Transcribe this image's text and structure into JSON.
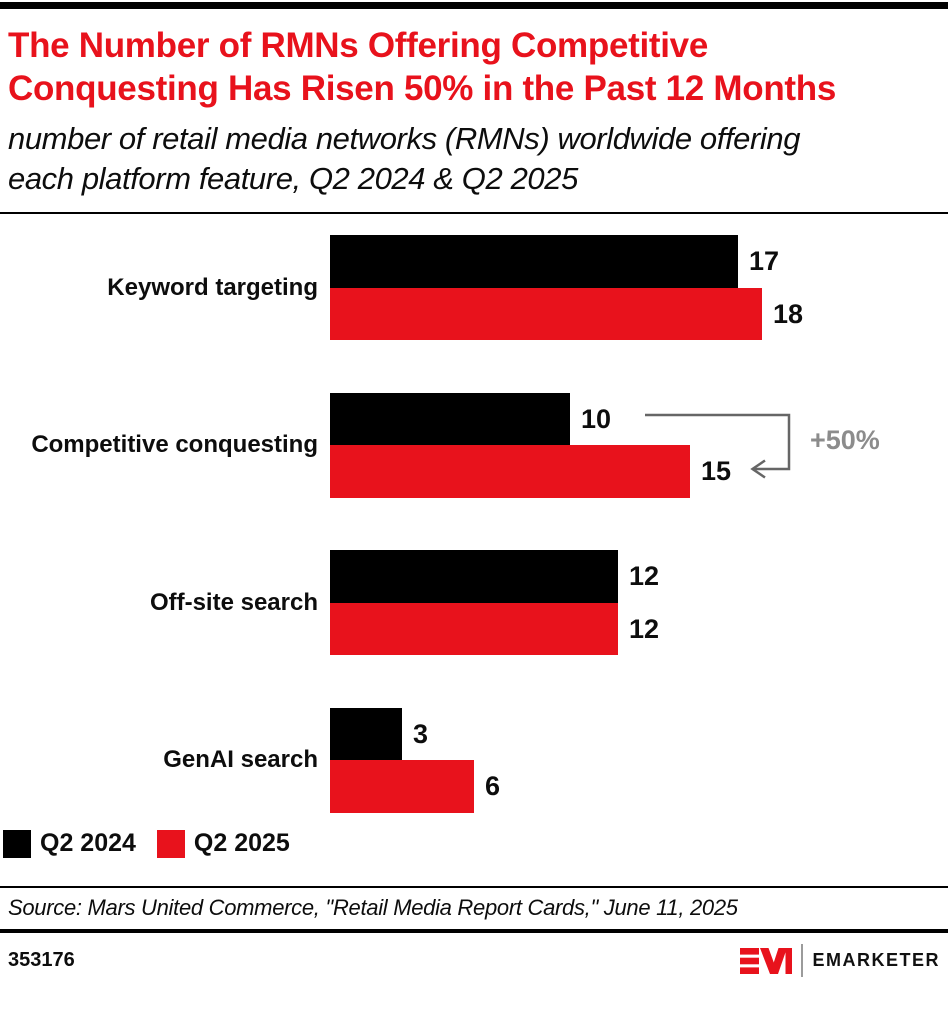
{
  "header": {
    "title": "The Number of RMNs Offering Competitive Conquesting Has Risen 50% in the Past 12 Months",
    "subtitle": "number of retail media networks (RMNs) worldwide offering each platform feature, Q2 2024 & Q2 2025"
  },
  "chart_data": {
    "type": "bar",
    "orientation": "horizontal",
    "title": "The Number of RMNs Offering Competitive Conquesting Has Risen 50% in the Past 12 Months",
    "subtitle": "number of retail media networks (RMNs) worldwide offering each platform feature, Q2 2024 & Q2 2025",
    "categories": [
      "Keyword targeting",
      "Competitive conquesting",
      "Off-site search",
      "GenAI search"
    ],
    "series": [
      {
        "name": "Q2 2024",
        "color": "#000000",
        "values": [
          17,
          10,
          12,
          3
        ]
      },
      {
        "name": "Q2 2025",
        "color": "#e8121c",
        "values": [
          18,
          15,
          12,
          6
        ]
      }
    ],
    "xlim": [
      0,
      18
    ],
    "grid": false,
    "value_labels_shown": true,
    "legend_position": "bottom-left",
    "annotation": {
      "label": "+50%",
      "category": "Competitive conquesting",
      "connects_values": [
        10,
        15
      ]
    }
  },
  "legend": {
    "items": [
      {
        "label": "Q2 2024",
        "color": "#000000"
      },
      {
        "label": "Q2 2025",
        "color": "#e8121c"
      }
    ]
  },
  "footer": {
    "source": "Source: Mars United Commerce, \"Retail Media Report Cards,\" June 11, 2025",
    "chart_id": "353176",
    "brand": "EMARKETER"
  },
  "colors": {
    "accent_red": "#e8121c",
    "bar_black": "#000000",
    "annotation_text_gray": "#8c8c8c",
    "annotation_line_gray": "#666666"
  }
}
